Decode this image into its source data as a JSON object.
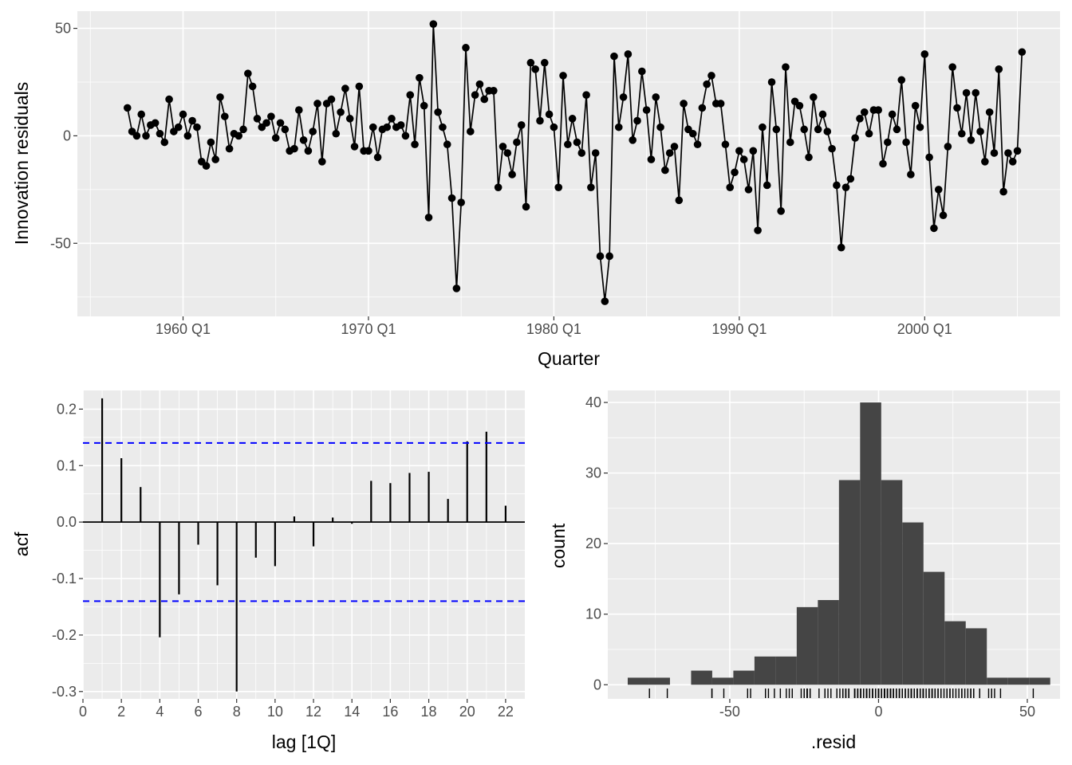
{
  "chart_data": [
    {
      "type": "line",
      "xlabel": "Quarter",
      "ylabel": "Innovation residuals",
      "x_tick_labels": [
        "1960 Q1",
        "1970 Q1",
        "1980 Q1",
        "1990 Q1",
        "2000 Q1"
      ],
      "x_ticks": [
        1960,
        1970,
        1980,
        1990,
        2000
      ],
      "y_tick_labels": [
        "50",
        "0",
        "-50"
      ],
      "y_ticks": [
        50,
        0,
        -50
      ],
      "xlim": [
        1954.3,
        2007.3
      ],
      "ylim": [
        -84,
        58
      ],
      "x_start": 1957.0,
      "x_step": 0.25,
      "series": [
        {
          "values": [
            13,
            2,
            0,
            10,
            0,
            5,
            6,
            1,
            -3,
            17,
            2,
            4,
            10,
            0,
            7,
            4,
            -12,
            -14,
            -3,
            -11,
            18,
            9,
            -6,
            1,
            0,
            3,
            29,
            23,
            8,
            4,
            6,
            9,
            -1,
            6,
            3,
            -7,
            -6,
            12,
            -2,
            -7,
            2,
            15,
            -12,
            15,
            17,
            1,
            11,
            22,
            8,
            -5,
            23,
            -7,
            -7,
            4,
            -10,
            3,
            4,
            8,
            4,
            5,
            0,
            19,
            -4,
            27,
            14,
            -38,
            52,
            11,
            4,
            -4,
            -29,
            -71,
            -31,
            41,
            2,
            19,
            24,
            17,
            21,
            21,
            -24,
            -5,
            -8,
            -18,
            -3,
            5,
            -33,
            34,
            31,
            7,
            34,
            10,
            4,
            -24,
            28,
            -4,
            8,
            -3,
            -8,
            19,
            -24,
            -8,
            -56,
            -77,
            -56,
            37,
            4,
            18,
            38,
            -2,
            7,
            30,
            12,
            -11,
            18,
            4,
            -16,
            -8,
            -5,
            -30,
            15,
            3,
            1,
            -4,
            13,
            24,
            28,
            15,
            15,
            -4,
            -24,
            -17,
            -7,
            -11,
            -25,
            -7,
            -44,
            4,
            -23,
            25,
            3,
            -35,
            32,
            -3,
            16,
            14,
            3,
            -10,
            18,
            3,
            10,
            2,
            -6,
            -23,
            -52,
            -24,
            -20,
            -1,
            8,
            11,
            1,
            12,
            12,
            -13,
            -3,
            10,
            3,
            26,
            -3,
            -18,
            14,
            4,
            38,
            -10,
            -43,
            -25,
            -37,
            -5,
            32,
            13,
            1,
            20,
            -2,
            20,
            2,
            -12,
            11,
            -8,
            31,
            -26,
            -8,
            -12,
            -7,
            39
          ]
        }
      ],
      "point_color": "#000000"
    },
    {
      "type": "bar",
      "xlabel": "lag [1Q]",
      "ylabel": "acf",
      "x_tick_labels": [
        "0",
        "2",
        "4",
        "6",
        "8",
        "10",
        "12",
        "14",
        "16",
        "18",
        "20",
        "22"
      ],
      "x_ticks": [
        0,
        2,
        4,
        6,
        8,
        10,
        12,
        14,
        16,
        18,
        20,
        22
      ],
      "y_tick_labels": [
        "0.2",
        "0.1",
        "0.0",
        "-0.1",
        "-0.2",
        "-0.3"
      ],
      "y_ticks": [
        0.2,
        0.1,
        0.0,
        -0.1,
        -0.2,
        -0.3
      ],
      "xlim": [
        0,
        23
      ],
      "ylim": [
        -0.3,
        0.22
      ],
      "categories": [
        1,
        2,
        3,
        4,
        5,
        6,
        7,
        8,
        9,
        10,
        11,
        12,
        13,
        14,
        15,
        16,
        17,
        18,
        19,
        20,
        21,
        22
      ],
      "values": [
        0.219,
        0.113,
        0.062,
        -0.204,
        -0.128,
        -0.04,
        -0.112,
        -0.3,
        -0.063,
        -0.078,
        0.01,
        -0.043,
        0.008,
        -0.003,
        0.073,
        0.069,
        0.087,
        0.089,
        0.041,
        0.143,
        0.16,
        0.029
      ],
      "confidence_band": 0.14,
      "band_color": "#0000FF"
    },
    {
      "type": "histogram",
      "xlabel": ".resid",
      "ylabel": "count",
      "x_tick_labels": [
        "-50",
        "0",
        "50"
      ],
      "x_ticks": [
        -50,
        0,
        50
      ],
      "y_tick_labels": [
        "40",
        "30",
        "20",
        "10",
        "0"
      ],
      "y_ticks": [
        40,
        30,
        20,
        10,
        0
      ],
      "xlim": [
        -91,
        61
      ],
      "ylim": [
        0,
        41.7
      ],
      "bin_edges": [
        -84.3,
        -77.2,
        -70.1,
        -63.0,
        -55.9,
        -48.8,
        -41.7,
        -34.6,
        -27.5,
        -20.4,
        -13.3,
        -6.2,
        0.9,
        8.0,
        15.1,
        22.2,
        29.3,
        36.4,
        43.5,
        50.6,
        57.7
      ],
      "counts": [
        1,
        1,
        0,
        2,
        1,
        2,
        4,
        4,
        11,
        12,
        29,
        40,
        29,
        23,
        16,
        9,
        8,
        1,
        1,
        1
      ],
      "bar_color": "#454545"
    }
  ]
}
